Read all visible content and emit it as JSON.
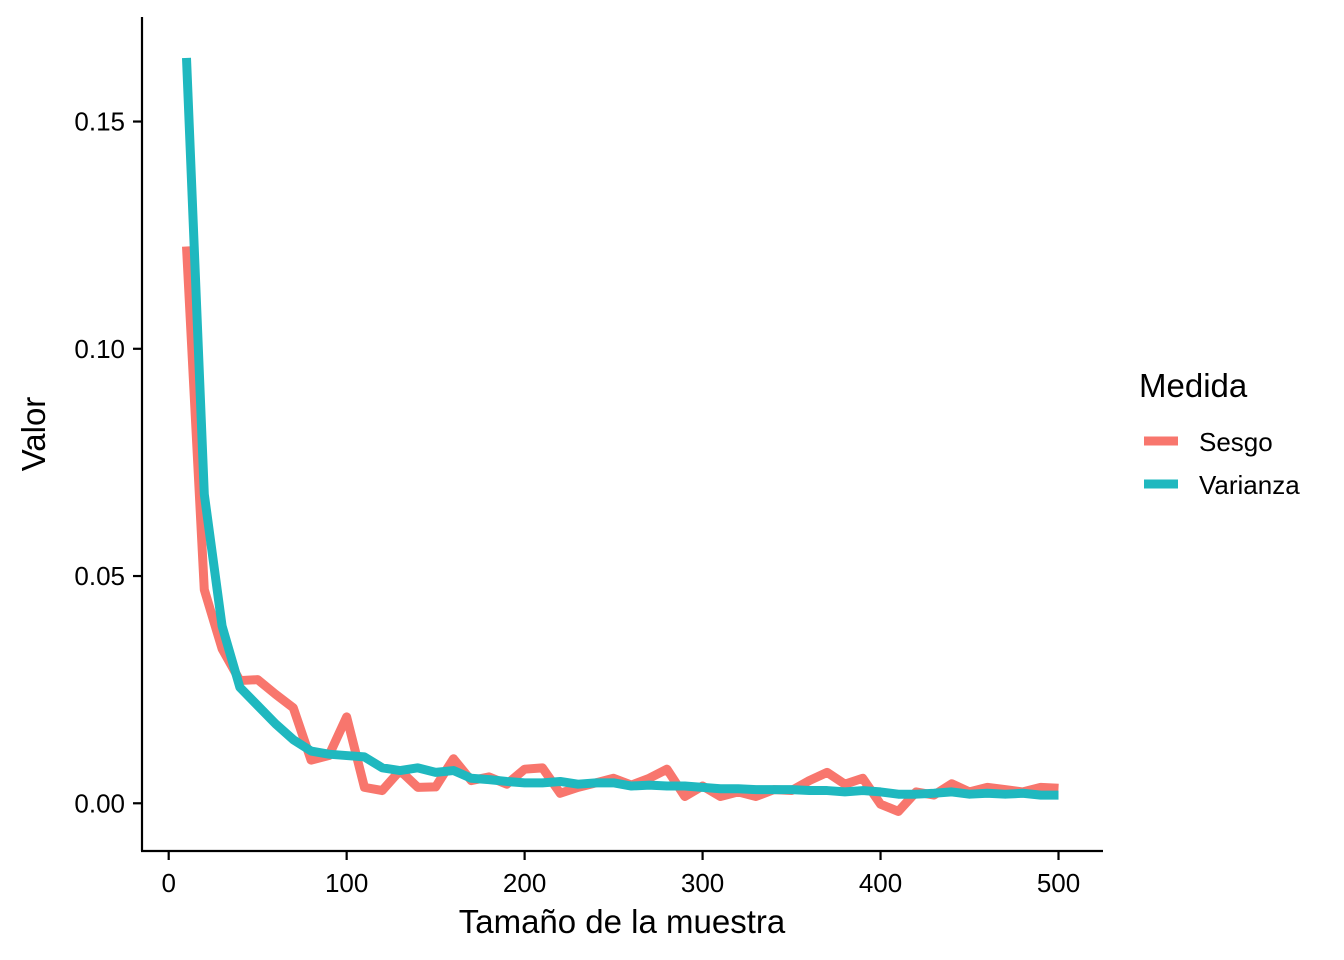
{
  "chart_data": {
    "type": "line",
    "xlabel": "Tamaño de la muestra",
    "ylabel": "Valor",
    "xlim": [
      -15,
      525
    ],
    "ylim": [
      -0.0105,
      0.173
    ],
    "x_ticks": [
      0,
      100,
      200,
      300,
      400,
      500
    ],
    "x_tick_labels": [
      "0",
      "100",
      "200",
      "300",
      "400",
      "500"
    ],
    "y_ticks": [
      0,
      0.05,
      0.1,
      0.15
    ],
    "y_tick_labels": [
      "0.00",
      "0.05",
      "0.10",
      "0.15"
    ],
    "grid": false,
    "legend": {
      "title": "Medida",
      "position": "right"
    },
    "x": [
      10,
      20,
      30,
      40,
      50,
      60,
      70,
      80,
      90,
      100,
      110,
      120,
      130,
      140,
      150,
      160,
      170,
      180,
      190,
      200,
      210,
      220,
      230,
      240,
      250,
      260,
      270,
      280,
      290,
      300,
      310,
      320,
      330,
      340,
      350,
      360,
      370,
      380,
      390,
      400,
      410,
      420,
      430,
      440,
      450,
      460,
      470,
      480,
      490,
      500
    ],
    "series": [
      {
        "name": "Sesgo",
        "color": "#F8766D",
        "values": [
          0.1225,
          0.047,
          0.034,
          0.027,
          0.0272,
          0.024,
          0.021,
          0.0095,
          0.0105,
          0.019,
          0.0035,
          0.0028,
          0.0072,
          0.0035,
          0.0036,
          0.0098,
          0.005,
          0.0058,
          0.0042,
          0.0075,
          0.0078,
          0.0022,
          0.0035,
          0.0045,
          0.0055,
          0.004,
          0.0055,
          0.0075,
          0.0015,
          0.0038,
          0.0015,
          0.0025,
          0.0015,
          0.003,
          0.0028,
          0.005,
          0.0068,
          0.0042,
          0.0055,
          -0.0002,
          -0.0018,
          0.0025,
          0.0018,
          0.0043,
          0.0025,
          0.0035,
          0.003,
          0.0025,
          0.0035,
          0.0033
        ]
      },
      {
        "name": "Varianza",
        "color": "#1FB8BF",
        "values": [
          0.164,
          0.068,
          0.039,
          0.0255,
          0.0215,
          0.0175,
          0.014,
          0.0115,
          0.0108,
          0.0105,
          0.0102,
          0.0078,
          0.0072,
          0.0078,
          0.0068,
          0.0072,
          0.0055,
          0.0052,
          0.0048,
          0.0045,
          0.0045,
          0.0048,
          0.0042,
          0.0045,
          0.0045,
          0.0038,
          0.004,
          0.0038,
          0.0038,
          0.0035,
          0.0032,
          0.0032,
          0.003,
          0.003,
          0.003,
          0.0028,
          0.0028,
          0.0025,
          0.0028,
          0.0025,
          0.002,
          0.002,
          0.0022,
          0.0025,
          0.002,
          0.0022,
          0.002,
          0.0022,
          0.0018,
          0.0018
        ]
      }
    ]
  }
}
